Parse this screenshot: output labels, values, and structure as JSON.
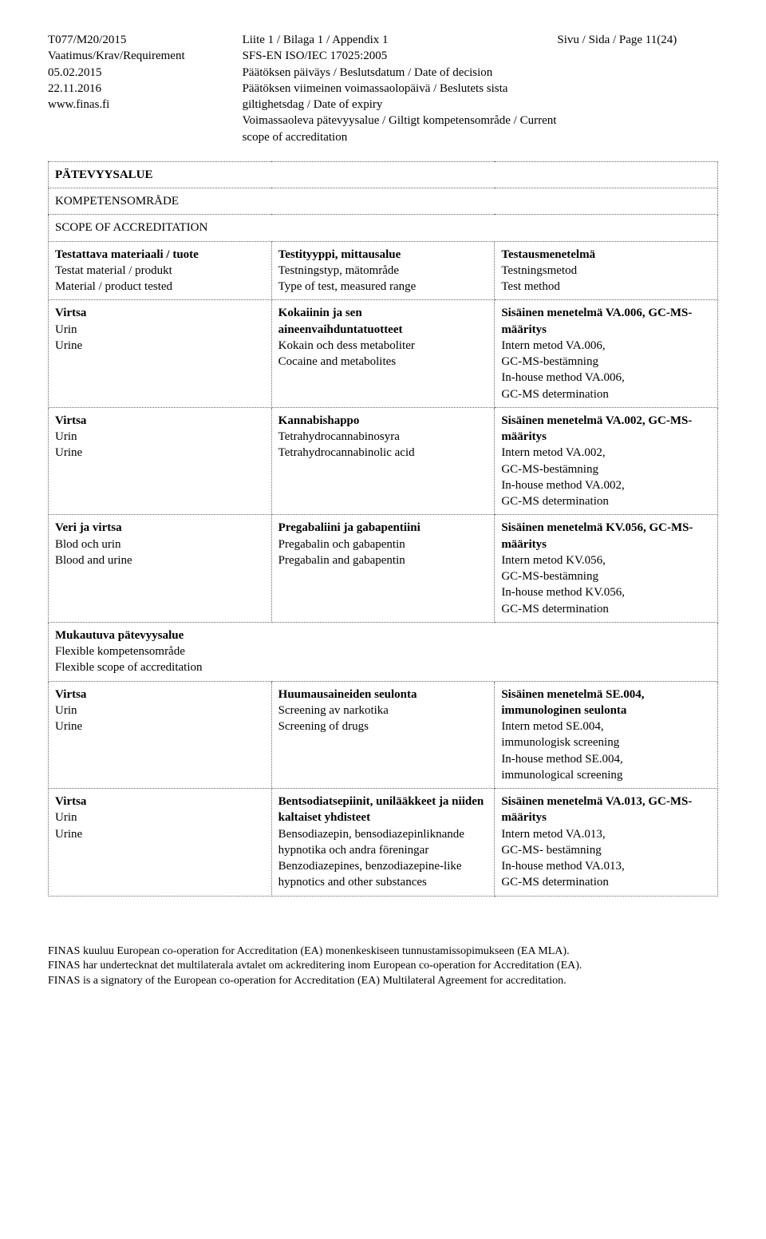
{
  "header": {
    "left": {
      "doc_id": "T077/M20/2015",
      "req_label": "Vaatimus/Krav/Requirement",
      "date1": "05.02.2015",
      "date2": "22.11.2016",
      "site": "www.finas.fi"
    },
    "mid": {
      "appendix": "Liite 1 / Bilaga 1 / Appendix 1",
      "standard": "SFS-EN ISO/IEC 17025:2005",
      "decision": "Päätöksen päiväys / Beslutsdatum / Date of decision",
      "expiry": "Päätöksen viimeinen voimassaolopäivä / Beslutets sista giltighetsdag / Date of expiry",
      "scope": "Voimassaoleva pätevyysalue / Giltigt kompetensområde / Current scope of accreditation"
    },
    "right": {
      "page": "Sivu / Sida / Page 11(24)"
    }
  },
  "table": {
    "title1": "PÄTEVYYSALUE",
    "title2": "KOMPETENSOMRÅDE",
    "title3": "SCOPE OF ACCREDITATION",
    "head": {
      "c1a": "Testattava materiaali / tuote",
      "c1b": "Testat material / produkt",
      "c1c": "Material / product tested",
      "c2a": "Testityyppi, mittausalue",
      "c2b": "Testningstyp, mätområde",
      "c2c": "Type of test, measured range",
      "c3a": "Testausmenetelmä",
      "c3b": "Testningsmetod",
      "c3c": "Test method"
    },
    "rows": [
      {
        "m1": "Virtsa",
        "m2": "Urin",
        "m3": "Urine",
        "t1": "Kokaiinin ja sen aineenvaihduntatuotteet",
        "t2": "Kokain och dess metaboliter",
        "t3": "Cocaine and metabolites",
        "r1": "Sisäinen menetelmä VA.006, GC-MS-määritys",
        "r2": "Intern metod VA.006,",
        "r3": "GC-MS-bestämning",
        "r4": "In-house method VA.006,",
        "r5": "GC-MS determination"
      },
      {
        "m1": "Virtsa",
        "m2": "Urin",
        "m3": "Urine",
        "t1": "Kannabishappo",
        "t2": "Tetrahydrocannabinosyra",
        "t3": "Tetrahydrocannabinolic acid",
        "r1": "Sisäinen menetelmä VA.002, GC-MS-määritys",
        "r2": "Intern metod VA.002,",
        "r3": "GC-MS-bestämning",
        "r4": "In-house method VA.002,",
        "r5": "GC-MS determination"
      },
      {
        "m1": "Veri ja virtsa",
        "m2": "Blod och urin",
        "m3": "Blood and urine",
        "t1": "Pregabaliini ja gabapentiini",
        "t2": "Pregabalin och gabapentin",
        "t3": "Pregabalin and gabapentin",
        "r1": "Sisäinen menetelmä KV.056, GC-MS-määritys",
        "r2": "Intern metod KV.056,",
        "r3": "GC-MS-bestämning",
        "r4": "In-house method KV.056,",
        "r5": "GC-MS determination"
      }
    ],
    "flex": {
      "l1": "Mukautuva pätevyysalue",
      "l2": "Flexible kompetensområde",
      "l3": "Flexible scope of accreditation"
    },
    "rows2": [
      {
        "m1": "Virtsa",
        "m2": "Urin",
        "m3": "Urine",
        "t1": "Huumausaineiden seulonta",
        "t2": "Screening av narkotika",
        "t3": "Screening of drugs",
        "r1": "Sisäinen menetelmä SE.004, immunologinen seulonta",
        "r2": "Intern metod SE.004,",
        "r3": "immunologisk screening",
        "r4": "In-house method SE.004,",
        "r5": "immunological screening"
      },
      {
        "m1": "Virtsa",
        "m2": "Urin",
        "m3": "Urine",
        "t1": "Bentsodiatsepiinit, unilääkkeet ja niiden kaltaiset yhdisteet",
        "t2": "Bensodiazepin, bensodiazepinliknande hypnotika och andra föreningar",
        "t3": "Benzodiazepines, benzodiazepine-like hypnotics and other substances",
        "r1": "Sisäinen menetelmä VA.013, GC-MS- määritys",
        "r2": "Intern metod VA.013,",
        "r3": "GC-MS- bestämning",
        "r4": "In-house method VA.013,",
        "r5": "GC-MS determination"
      }
    ]
  },
  "footer": {
    "l1": "FINAS kuuluu European co-operation for Accreditation (EA) monenkeskiseen tunnustamissopimukseen (EA MLA).",
    "l2": "FINAS har undertecknat det multilaterala avtalet om ackreditering inom European co-operation for Accreditation (EA).",
    "l3": "FINAS is a signatory of the European co-operation for Accreditation (EA) Multilateral Agreement for accreditation."
  }
}
